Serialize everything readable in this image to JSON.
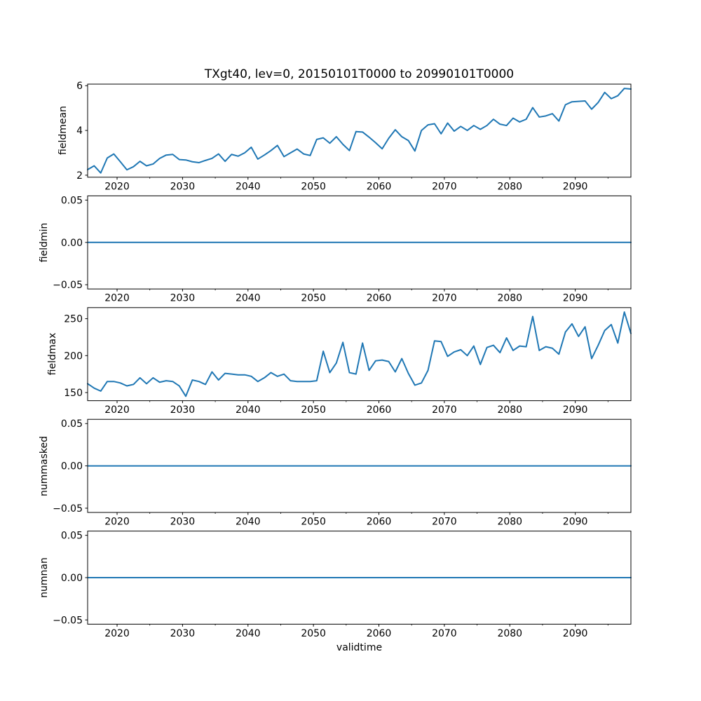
{
  "figure": {
    "title": "TXgt40, lev=0, 20150101T0000 to 20990101T0000",
    "xlabel": "validtime",
    "line_color": "#1f77b4",
    "axis_color": "#000000",
    "background_color": "#ffffff",
    "x_major_tick_labels": [
      "2020",
      "2030",
      "2040",
      "2050",
      "2060",
      "2070",
      "2080",
      "2090"
    ],
    "x_major_ticks": [
      2020,
      2030,
      2040,
      2050,
      2060,
      2070,
      2080,
      2090
    ],
    "x_minor_ticks": [
      2025,
      2035,
      2045,
      2055,
      2065,
      2075,
      2085,
      2095
    ],
    "x_range": [
      2015.5,
      2098.5
    ]
  },
  "chart_data": [
    {
      "type": "line",
      "ylabel": "fieldmean",
      "ylim": [
        1.91,
        6.07
      ],
      "yticks": [
        {
          "v": 2,
          "label": "2"
        },
        {
          "v": 4,
          "label": "4"
        },
        {
          "v": 6,
          "label": "6"
        }
      ],
      "x_start": 2015,
      "x_end": 2098,
      "x_step": 1,
      "values": [
        2.25,
        2.42,
        2.1,
        2.77,
        2.95,
        2.6,
        2.24,
        2.38,
        2.62,
        2.42,
        2.5,
        2.75,
        2.9,
        2.93,
        2.7,
        2.68,
        2.6,
        2.56,
        2.66,
        2.75,
        2.95,
        2.62,
        2.93,
        2.85,
        3.0,
        3.25,
        2.72,
        2.9,
        3.1,
        3.33,
        2.83,
        3.0,
        3.17,
        2.95,
        2.88,
        3.6,
        3.67,
        3.43,
        3.72,
        3.38,
        3.1,
        3.95,
        3.93,
        3.7,
        3.45,
        3.18,
        3.65,
        4.03,
        3.72,
        3.55,
        3.08,
        4.0,
        4.25,
        4.3,
        3.85,
        4.33,
        3.97,
        4.18,
        4.0,
        4.22,
        4.05,
        4.22,
        4.5,
        4.28,
        4.22,
        4.55,
        4.38,
        4.5,
        5.02,
        4.6,
        4.65,
        4.75,
        4.42,
        5.15,
        5.28,
        5.3,
        5.32,
        4.95,
        5.25,
        5.7,
        5.42,
        5.55,
        5.88,
        5.85
      ]
    },
    {
      "type": "line",
      "ylabel": "fieldmin",
      "ylim": [
        -0.055,
        0.055
      ],
      "yticks": [
        {
          "v": 0.05,
          "label": "0.05"
        },
        {
          "v": 0,
          "label": "0.00"
        },
        {
          "v": -0.05,
          "label": "−0.05"
        }
      ],
      "x_start": 2015,
      "x_end": 2098,
      "x_step": 1,
      "values": [
        0,
        0,
        0,
        0,
        0,
        0,
        0,
        0,
        0,
        0,
        0,
        0,
        0,
        0,
        0,
        0,
        0,
        0,
        0,
        0,
        0,
        0,
        0,
        0,
        0,
        0,
        0,
        0,
        0,
        0,
        0,
        0,
        0,
        0,
        0,
        0,
        0,
        0,
        0,
        0,
        0,
        0,
        0,
        0,
        0,
        0,
        0,
        0,
        0,
        0,
        0,
        0,
        0,
        0,
        0,
        0,
        0,
        0,
        0,
        0,
        0,
        0,
        0,
        0,
        0,
        0,
        0,
        0,
        0,
        0,
        0,
        0,
        0,
        0,
        0,
        0,
        0,
        0,
        0,
        0,
        0,
        0,
        0,
        0
      ]
    },
    {
      "type": "line",
      "ylabel": "fieldmax",
      "ylim": [
        139,
        265
      ],
      "yticks": [
        {
          "v": 150,
          "label": "150"
        },
        {
          "v": 200,
          "label": "200"
        },
        {
          "v": 250,
          "label": "250"
        }
      ],
      "x_start": 2015,
      "x_end": 2098,
      "x_step": 1,
      "values": [
        162,
        156,
        152,
        165,
        165,
        163,
        159,
        161,
        170,
        162,
        170,
        164,
        166,
        165,
        159,
        145,
        167,
        165,
        161,
        178,
        167,
        176,
        175,
        174,
        174,
        172,
        165,
        170,
        177,
        172,
        175,
        166,
        165,
        165,
        165,
        166,
        206,
        177,
        190,
        218,
        177,
        175,
        217,
        180,
        193,
        194,
        192,
        178,
        196,
        176,
        160,
        163,
        180,
        220,
        219,
        199,
        205,
        208,
        200,
        213,
        188,
        211,
        214,
        204,
        224,
        207,
        213,
        212,
        253,
        207,
        212,
        210,
        202,
        232,
        243,
        226,
        239,
        196,
        214,
        234,
        242,
        217,
        259,
        230
      ]
    },
    {
      "type": "line",
      "ylabel": "nummasked",
      "ylim": [
        -0.055,
        0.055
      ],
      "yticks": [
        {
          "v": 0.05,
          "label": "0.05"
        },
        {
          "v": 0,
          "label": "0.00"
        },
        {
          "v": -0.05,
          "label": "−0.05"
        }
      ],
      "x_start": 2015,
      "x_end": 2098,
      "x_step": 1,
      "values": [
        0,
        0,
        0,
        0,
        0,
        0,
        0,
        0,
        0,
        0,
        0,
        0,
        0,
        0,
        0,
        0,
        0,
        0,
        0,
        0,
        0,
        0,
        0,
        0,
        0,
        0,
        0,
        0,
        0,
        0,
        0,
        0,
        0,
        0,
        0,
        0,
        0,
        0,
        0,
        0,
        0,
        0,
        0,
        0,
        0,
        0,
        0,
        0,
        0,
        0,
        0,
        0,
        0,
        0,
        0,
        0,
        0,
        0,
        0,
        0,
        0,
        0,
        0,
        0,
        0,
        0,
        0,
        0,
        0,
        0,
        0,
        0,
        0,
        0,
        0,
        0,
        0,
        0,
        0,
        0,
        0,
        0,
        0,
        0
      ]
    },
    {
      "type": "line",
      "ylabel": "numnan",
      "ylim": [
        -0.055,
        0.055
      ],
      "yticks": [
        {
          "v": 0.05,
          "label": "0.05"
        },
        {
          "v": 0,
          "label": "0.00"
        },
        {
          "v": -0.05,
          "label": "−0.05"
        }
      ],
      "x_start": 2015,
      "x_end": 2098,
      "x_step": 1,
      "values": [
        0,
        0,
        0,
        0,
        0,
        0,
        0,
        0,
        0,
        0,
        0,
        0,
        0,
        0,
        0,
        0,
        0,
        0,
        0,
        0,
        0,
        0,
        0,
        0,
        0,
        0,
        0,
        0,
        0,
        0,
        0,
        0,
        0,
        0,
        0,
        0,
        0,
        0,
        0,
        0,
        0,
        0,
        0,
        0,
        0,
        0,
        0,
        0,
        0,
        0,
        0,
        0,
        0,
        0,
        0,
        0,
        0,
        0,
        0,
        0,
        0,
        0,
        0,
        0,
        0,
        0,
        0,
        0,
        0,
        0,
        0,
        0,
        0,
        0,
        0,
        0,
        0,
        0,
        0,
        0,
        0,
        0,
        0,
        0
      ]
    }
  ]
}
